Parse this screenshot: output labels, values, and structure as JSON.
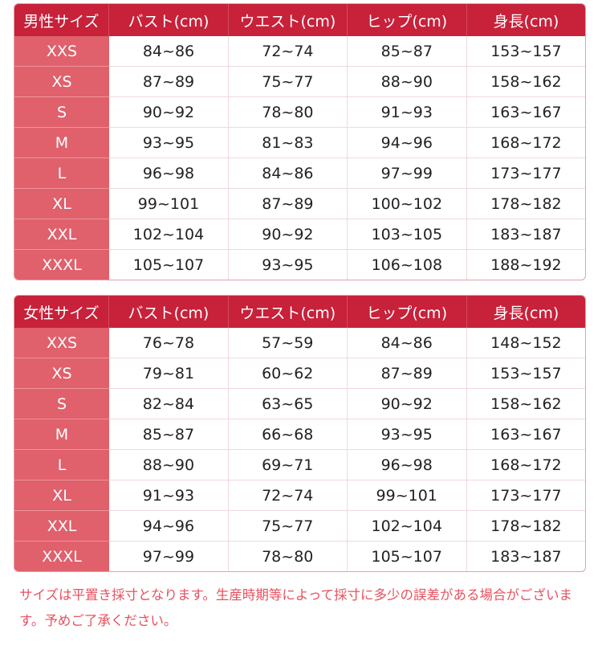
{
  "colors": {
    "header": "#c8213a",
    "size_column": "#e0606c",
    "note": "#e8505e"
  },
  "men": {
    "headers": [
      "男性サイズ",
      "バスト(cm)",
      "ウエスト(cm)",
      "ヒップ(cm)",
      "身長(cm)"
    ],
    "rows": [
      [
        "XXS",
        "84~86",
        "72~74",
        "85~87",
        "153~157"
      ],
      [
        "XS",
        "87~89",
        "75~77",
        "88~90",
        "158~162"
      ],
      [
        "S",
        "90~92",
        "78~80",
        "91~93",
        "163~167"
      ],
      [
        "M",
        "93~95",
        "81~83",
        "94~96",
        "168~172"
      ],
      [
        "L",
        "96~98",
        "84~86",
        "97~99",
        "173~177"
      ],
      [
        "XL",
        "99~101",
        "87~89",
        "100~102",
        "178~182"
      ],
      [
        "XXL",
        "102~104",
        "90~92",
        "103~105",
        "183~187"
      ],
      [
        "XXXL",
        "105~107",
        "93~95",
        "106~108",
        "188~192"
      ]
    ]
  },
  "women": {
    "headers": [
      "女性サイズ",
      "バスト(cm)",
      "ウエスト(cm)",
      "ヒップ(cm)",
      "身長(cm)"
    ],
    "rows": [
      [
        "XXS",
        "76~78",
        "57~59",
        "84~86",
        "148~152"
      ],
      [
        "XS",
        "79~81",
        "60~62",
        "87~89",
        "153~157"
      ],
      [
        "S",
        "82~84",
        "63~65",
        "90~92",
        "158~162"
      ],
      [
        "M",
        "85~87",
        "66~68",
        "93~95",
        "163~167"
      ],
      [
        "L",
        "88~90",
        "69~71",
        "96~98",
        "168~172"
      ],
      [
        "XL",
        "91~93",
        "72~74",
        "99~101",
        "173~177"
      ],
      [
        "XXL",
        "94~96",
        "75~77",
        "102~104",
        "178~182"
      ],
      [
        "XXXL",
        "97~99",
        "78~80",
        "105~107",
        "183~187"
      ]
    ]
  },
  "note": "サイズは平置き採寸となります。生産時期等によって採寸に多少の誤差がある場合がございます。予めご了承ください。"
}
